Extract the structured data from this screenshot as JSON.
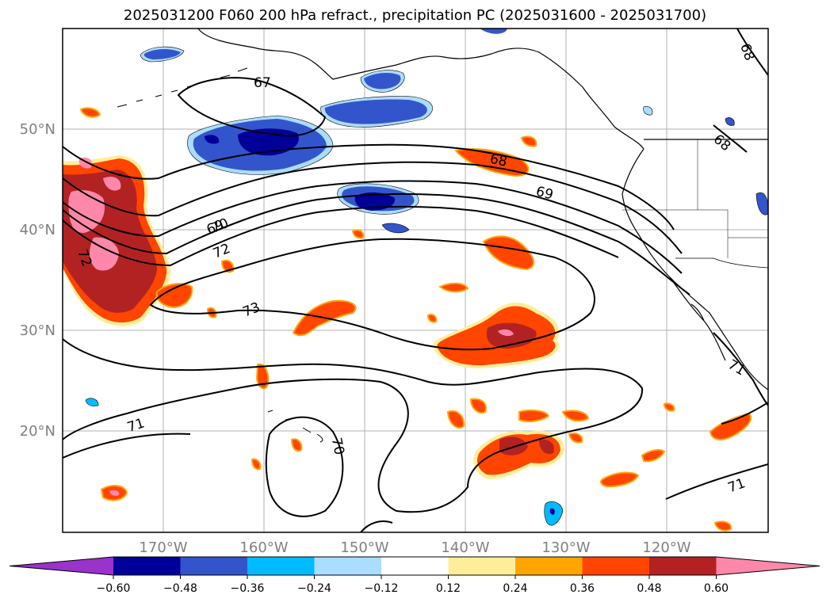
{
  "title": "2025031200 F060 200 hPa refract., precipitation PC (2025031600 - 2025031700)",
  "map": {
    "lat_labels": [
      "50°N",
      "40°N",
      "30°N",
      "20°N"
    ],
    "lon_labels": [
      "170°W",
      "160°W",
      "150°W",
      "140°W",
      "130°W",
      "120°W"
    ],
    "contour_labels": [
      "67",
      "68",
      "68",
      "68",
      "69",
      "69",
      "70",
      "70",
      "71",
      "71",
      "71",
      "72",
      "72",
      "73"
    ]
  },
  "colorbar": {
    "colors": [
      "#9933cc",
      "#000099",
      "#3355cc",
      "#00bbff",
      "#aaddff",
      "#ffffff",
      "#ffee99",
      "#ffa500",
      "#ff4500",
      "#b22222",
      "#ff88aa"
    ],
    "tick_labels": [
      "−0.60",
      "−0.48",
      "−0.36",
      "−0.24",
      "−0.12",
      "0.12",
      "0.24",
      "0.36",
      "0.48",
      "0.60"
    ]
  }
}
